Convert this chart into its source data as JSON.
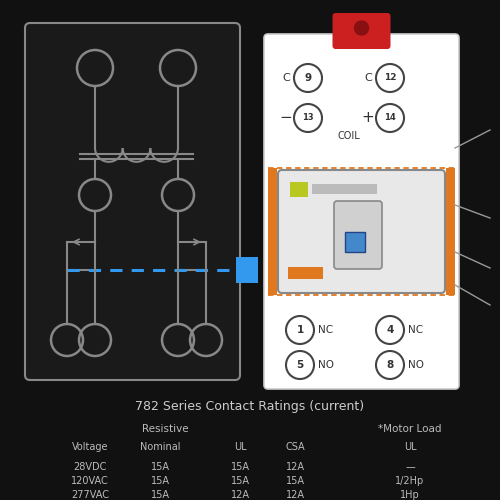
{
  "bg_color": "#111111",
  "fg_color": "#cccccc",
  "title": "782 Series Contact Ratings (current)",
  "table_headers_resistive": "Resistive",
  "table_headers_motor": "*Motor Load",
  "col_headers": [
    "Voltage",
    "Nominal",
    "UL",
    "CSA",
    "UL"
  ],
  "rows": [
    [
      "28VDC",
      "15A",
      "15A",
      "12A",
      "—"
    ],
    [
      "120VAC",
      "15A",
      "15A",
      "15A",
      "1/2Hp"
    ],
    [
      "277VAC",
      "15A",
      "12A",
      "12A",
      "1Hp"
    ]
  ],
  "relay_body_color": "#ffffff",
  "relay_border_color": "#aaaaaa",
  "relay_orange_color": "#e07820",
  "relay_red_color": "#cc2020",
  "relay_yellow_color": "#b8c820",
  "relay_blue_color": "#4488cc",
  "dashed_blue_color": "#3399ee",
  "orange_dashed_color": "#e07820",
  "arrow_line_color": "#999999",
  "circuit_color": "#888888"
}
